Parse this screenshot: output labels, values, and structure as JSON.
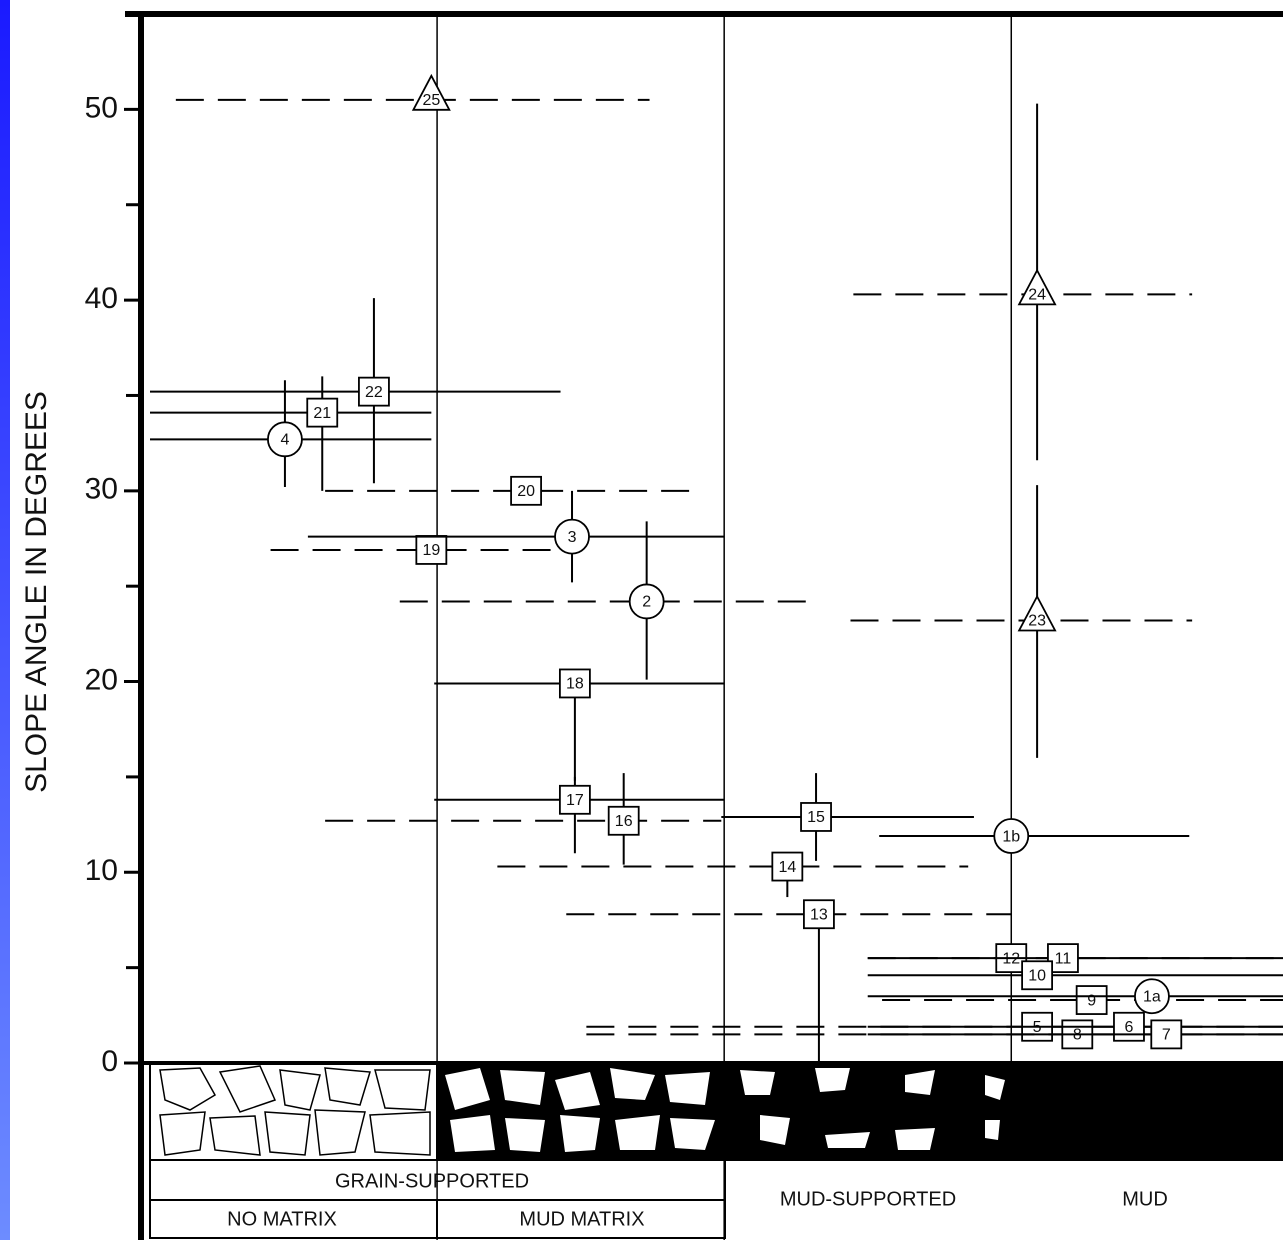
{
  "chart_data": {
    "type": "scatter",
    "y_label": "SLOPE ANGLE IN DEGREES",
    "ylim": [
      0,
      55
    ],
    "yticks": [
      0,
      10,
      20,
      30,
      40,
      50
    ],
    "minor_yticks": [
      5,
      15,
      25,
      35,
      45
    ],
    "xlim": [
      0,
      3.95
    ],
    "group_label": "GRAIN-SUPPORTED",
    "columns": [
      "NO MATRIX",
      "MUD MATRIX",
      "MUD-SUPPORTED",
      "MUD"
    ],
    "points": [
      {
        "label": "25",
        "marker": "triangle",
        "x": 0.98,
        "y": 50.5,
        "err": null,
        "span": [
          0.09,
          1.74
        ],
        "dashed": true
      },
      {
        "label": "4",
        "marker": "circle",
        "x": 0.47,
        "y": 32.7,
        "err": [
          30.2,
          35.8
        ],
        "span": [
          0,
          0.98
        ],
        "dashed": false
      },
      {
        "label": "21",
        "marker": "square",
        "x": 0.6,
        "y": 34.1,
        "err": [
          30,
          36
        ],
        "span": [
          0,
          0.98
        ],
        "dashed": false
      },
      {
        "label": "22",
        "marker": "square",
        "x": 0.78,
        "y": 35.2,
        "err": [
          30.4,
          40.1
        ],
        "span": [
          0,
          1.43
        ],
        "dashed": false
      },
      {
        "label": "20",
        "marker": "square",
        "x": 1.31,
        "y": 30,
        "err": null,
        "span": [
          0.61,
          1.92
        ],
        "dashed": true
      },
      {
        "label": "19",
        "marker": "square",
        "x": 0.98,
        "y": 26.9,
        "err": null,
        "span": [
          0.42,
          1.42
        ],
        "dashed": true
      },
      {
        "label": "3",
        "marker": "circle",
        "x": 1.47,
        "y": 27.6,
        "err": [
          25.2,
          30
        ],
        "span": [
          0.55,
          2
        ],
        "dashed": false
      },
      {
        "label": "2",
        "marker": "circle",
        "x": 1.73,
        "y": 24.2,
        "err": [
          20.1,
          28.4
        ],
        "span": [
          0.87,
          2.29
        ],
        "dashed": true
      },
      {
        "label": "18",
        "marker": "square",
        "x": 1.48,
        "y": 19.9,
        "err": [
          14.8,
          19.9
        ],
        "span": [
          0.99,
          2
        ],
        "dashed": false
      },
      {
        "label": "17",
        "marker": "square",
        "x": 1.48,
        "y": 13.8,
        "err": [
          11,
          15
        ],
        "span": [
          0.99,
          2
        ],
        "dashed": false
      },
      {
        "label": "16",
        "marker": "square",
        "x": 1.65,
        "y": 12.7,
        "err": [
          10.4,
          15.2
        ],
        "span": [
          0.61,
          1.99
        ],
        "dashed": true
      },
      {
        "label": "15",
        "marker": "square",
        "x": 2.32,
        "y": 12.9,
        "err": [
          10.6,
          15.2
        ],
        "span": [
          1.99,
          2.87
        ],
        "dashed": false
      },
      {
        "label": "14",
        "marker": "square",
        "x": 2.22,
        "y": 10.3,
        "err": [
          8.7,
          10.3
        ],
        "span": [
          1.21,
          2.85
        ],
        "dashed": true
      },
      {
        "label": "13",
        "marker": "square",
        "x": 2.33,
        "y": 7.8,
        "err": [
          0,
          7.8
        ],
        "span": [
          1.45,
          3
        ],
        "dashed": true
      },
      {
        "label": "1b",
        "marker": "circle",
        "x": 3,
        "y": 11.9,
        "err": null,
        "span": [
          2.54,
          3.62
        ],
        "dashed": false
      },
      {
        "label": "24",
        "marker": "triangle",
        "x": 3.09,
        "y": 40.3,
        "err": [
          31.6,
          50.3
        ],
        "span": [
          2.45,
          3.63
        ],
        "dashed": true
      },
      {
        "label": "23",
        "marker": "triangle",
        "x": 3.09,
        "y": 23.2,
        "err": [
          16,
          30.3
        ],
        "span": [
          2.44,
          3.63
        ],
        "dashed": true
      },
      {
        "label": "12",
        "marker": "square",
        "x": 3,
        "y": 5.5,
        "err": null,
        "span": [
          2.5,
          3.95
        ],
        "dashed": true
      },
      {
        "label": "11",
        "marker": "square",
        "x": 3.18,
        "y": 5.5,
        "err": null,
        "span": [
          2.5,
          3.95
        ],
        "dashed": false
      },
      {
        "label": "10",
        "marker": "square",
        "x": 3.09,
        "y": 4.6,
        "err": null,
        "span": [
          2.5,
          3.95
        ],
        "dashed": false
      },
      {
        "label": "9",
        "marker": "square",
        "x": 3.28,
        "y": 3.3,
        "err": null,
        "span": [
          2.55,
          3.95
        ],
        "dashed": true
      },
      {
        "label": "1a",
        "marker": "circle",
        "x": 3.49,
        "y": 3.5,
        "err": null,
        "span": [
          2.5,
          3.95
        ],
        "dashed": false
      },
      {
        "label": "5",
        "marker": "square",
        "x": 3.09,
        "y": 1.9,
        "err": null,
        "span": [
          1.52,
          3.95
        ],
        "dashed": true
      },
      {
        "label": "8",
        "marker": "square",
        "x": 3.23,
        "y": 1.5,
        "err": null,
        "span": [
          1.52,
          3.95
        ],
        "dashed": true
      },
      {
        "label": "6",
        "marker": "square",
        "x": 3.41,
        "y": 1.9,
        "err": null,
        "span": [
          2.5,
          3.95
        ],
        "dashed": false
      },
      {
        "label": "7",
        "marker": "square",
        "x": 3.54,
        "y": 1.5,
        "err": null,
        "span": [
          2.5,
          3.95
        ],
        "dashed": false
      }
    ]
  }
}
